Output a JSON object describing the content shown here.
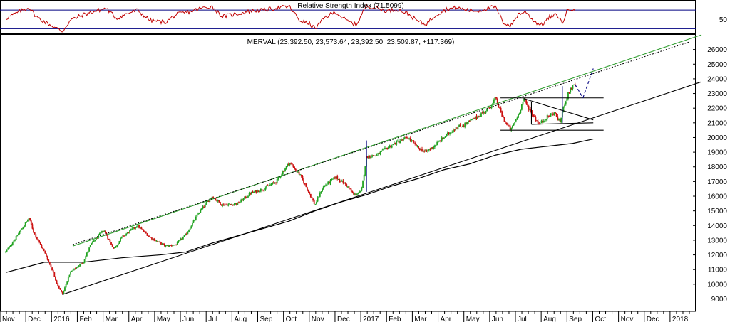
{
  "rsi_panel": {
    "title": "Relative Strength Index (71.5099)",
    "tick_labels": [
      "50"
    ],
    "upper_band": 70,
    "lower_band": 30,
    "ylim": [
      20,
      90
    ],
    "line_color": "#c00000",
    "band_color": "#000080"
  },
  "price_panel": {
    "title": "MERVAL (23,392.50, 23,573.64, 23,392.50, 23,509.87, +117.369)",
    "colors": {
      "up": "#22a322",
      "down": "#cc1111",
      "channel_upper": "#2e9e2e",
      "trendline": "#000000",
      "moving_average": "#000000",
      "pattern": "#000080"
    }
  },
  "chart_data": {
    "type": "candlestick",
    "x_tick_labels": [
      "Nov",
      "Dec",
      "2016",
      "Feb",
      "Mar",
      "Apr",
      "May",
      "Jun",
      "Jul",
      "Aug",
      "Sep",
      "Oct",
      "Nov",
      "Dec",
      "2017",
      "Feb",
      "Mar",
      "Apr",
      "May",
      "Jun",
      "Jul",
      "Aug",
      "Sep",
      "Oct",
      "Nov",
      "Dec",
      "2018"
    ],
    "y_tick_labels": [
      "9000",
      "10000",
      "11000",
      "12000",
      "13000",
      "14000",
      "15000",
      "16000",
      "17000",
      "18000",
      "19000",
      "20000",
      "21000",
      "22000",
      "23000",
      "24000",
      "25000",
      "26000"
    ],
    "ylim": [
      8200,
      27000
    ],
    "x_range_months": [
      0,
      26.3
    ],
    "price_path": [
      [
        0.0,
        12200
      ],
      [
        0.4,
        13200
      ],
      [
        0.9,
        14500
      ],
      [
        1.1,
        13500
      ],
      [
        1.5,
        12200
      ],
      [
        1.8,
        11000
      ],
      [
        2.0,
        10000
      ],
      [
        2.2,
        9300
      ],
      [
        2.5,
        10800
      ],
      [
        3.0,
        11500
      ],
      [
        3.3,
        12700
      ],
      [
        3.8,
        13700
      ],
      [
        4.2,
        12400
      ],
      [
        4.5,
        13200
      ],
      [
        5.1,
        14000
      ],
      [
        5.6,
        13200
      ],
      [
        6.2,
        12600
      ],
      [
        6.6,
        12700
      ],
      [
        7.0,
        13400
      ],
      [
        7.5,
        14900
      ],
      [
        8.0,
        16000
      ],
      [
        8.4,
        15400
      ],
      [
        9.0,
        15500
      ],
      [
        9.5,
        16200
      ],
      [
        10.0,
        16500
      ],
      [
        10.5,
        17000
      ],
      [
        11.0,
        18300
      ],
      [
        11.4,
        17500
      ],
      [
        11.7,
        16500
      ],
      [
        12.0,
        15400
      ],
      [
        12.3,
        16600
      ],
      [
        12.8,
        17300
      ],
      [
        13.2,
        16800
      ],
      [
        13.5,
        16100
      ],
      [
        13.8,
        16300
      ],
      [
        14.0,
        18700
      ],
      [
        14.4,
        18800
      ],
      [
        14.8,
        19300
      ],
      [
        15.2,
        19700
      ],
      [
        15.6,
        20000
      ],
      [
        16.0,
        19300
      ],
      [
        16.3,
        19000
      ],
      [
        16.6,
        19400
      ],
      [
        17.0,
        20000
      ],
      [
        17.4,
        20600
      ],
      [
        17.8,
        20900
      ],
      [
        18.2,
        21300
      ],
      [
        18.6,
        21800
      ],
      [
        18.9,
        22300
      ],
      [
        19.0,
        22700
      ],
      [
        19.3,
        21300
      ],
      [
        19.6,
        20500
      ],
      [
        19.9,
        21600
      ],
      [
        20.1,
        22600
      ],
      [
        20.4,
        21700
      ],
      [
        20.7,
        20900
      ],
      [
        21.0,
        21400
      ],
      [
        21.3,
        21700
      ],
      [
        21.5,
        21000
      ],
      [
        21.7,
        22400
      ],
      [
        21.9,
        23300
      ],
      [
        22.1,
        23600
      ]
    ],
    "moving_average": [
      [
        0.0,
        10800
      ],
      [
        1.5,
        11500
      ],
      [
        3.0,
        11500
      ],
      [
        4.5,
        11800
      ],
      [
        6.0,
        12000
      ],
      [
        7.0,
        12200
      ],
      [
        8.0,
        12800
      ],
      [
        9.0,
        13300
      ],
      [
        10.0,
        13800
      ],
      [
        11.0,
        14300
      ],
      [
        12.0,
        15000
      ],
      [
        13.0,
        15600
      ],
      [
        14.0,
        16100
      ],
      [
        15.0,
        16700
      ],
      [
        16.0,
        17200
      ],
      [
        17.0,
        17800
      ],
      [
        18.0,
        18200
      ],
      [
        19.0,
        18800
      ],
      [
        20.0,
        19200
      ],
      [
        21.0,
        19400
      ],
      [
        22.0,
        19600
      ],
      [
        22.8,
        19900
      ]
    ],
    "trendlines": [
      {
        "name": "channel_upper_solid",
        "style": "solid",
        "color_key": "channel_upper",
        "points": [
          [
            2.6,
            12600
          ],
          [
            27.0,
            27000
          ]
        ]
      },
      {
        "name": "channel_upper_dotted",
        "style": "dotted",
        "color_key": "trendline",
        "points": [
          [
            2.6,
            12700
          ],
          [
            26.5,
            26500
          ]
        ]
      },
      {
        "name": "support_trend",
        "style": "solid",
        "color_key": "trendline",
        "points": [
          [
            2.2,
            9300
          ],
          [
            27.0,
            23800
          ]
        ]
      },
      {
        "name": "range_top",
        "style": "solid",
        "color_key": "trendline",
        "points": [
          [
            19.2,
            22700
          ],
          [
            23.2,
            22700
          ]
        ]
      },
      {
        "name": "range_bottom",
        "style": "solid",
        "color_key": "trendline",
        "points": [
          [
            19.2,
            20500
          ],
          [
            23.2,
            20500
          ]
        ]
      },
      {
        "name": "triangle_upper",
        "style": "solid",
        "color_key": "trendline",
        "points": [
          [
            20.1,
            22650
          ],
          [
            22.8,
            21200
          ]
        ]
      },
      {
        "name": "triangle_lower",
        "style": "solid",
        "color_key": "trendline",
        "points": [
          [
            20.4,
            20900
          ],
          [
            22.8,
            21000
          ]
        ]
      },
      {
        "name": "triangle_left_leg",
        "style": "solid",
        "color_key": "trendline",
        "points": [
          [
            20.4,
            20900
          ],
          [
            20.4,
            22400
          ]
        ]
      },
      {
        "name": "breakout_rise_2017",
        "style": "solid",
        "color_key": "pattern",
        "points": [
          [
            14.0,
            16300
          ],
          [
            14.0,
            19800
          ]
        ]
      },
      {
        "name": "breakout_rise_aug",
        "style": "solid",
        "color_key": "pattern",
        "points": [
          [
            21.6,
            21000
          ],
          [
            21.6,
            23500
          ]
        ]
      },
      {
        "name": "projection_retest",
        "style": "dashed",
        "color_key": "pattern",
        "points": [
          [
            22.1,
            23600
          ],
          [
            22.4,
            22700
          ]
        ]
      },
      {
        "name": "projection_target",
        "style": "dashed",
        "color_key": "pattern",
        "points": [
          [
            22.4,
            22700
          ],
          [
            22.8,
            24700
          ]
        ]
      }
    ],
    "rsi_path": [
      [
        0.0,
        52
      ],
      [
        0.4,
        63
      ],
      [
        0.9,
        76
      ],
      [
        1.2,
        55
      ],
      [
        1.6,
        42
      ],
      [
        2.0,
        30
      ],
      [
        2.2,
        24
      ],
      [
        2.5,
        48
      ],
      [
        3.0,
        60
      ],
      [
        3.5,
        68
      ],
      [
        3.9,
        74
      ],
      [
        4.3,
        52
      ],
      [
        4.7,
        62
      ],
      [
        5.1,
        70
      ],
      [
        5.6,
        48
      ],
      [
        6.2,
        44
      ],
      [
        6.6,
        60
      ],
      [
        7.1,
        66
      ],
      [
        7.6,
        74
      ],
      [
        8.0,
        78
      ],
      [
        8.4,
        56
      ],
      [
        9.0,
        62
      ],
      [
        9.5,
        68
      ],
      [
        10.0,
        70
      ],
      [
        10.5,
        74
      ],
      [
        11.0,
        78
      ],
      [
        11.4,
        48
      ],
      [
        11.8,
        40
      ],
      [
        12.0,
        30
      ],
      [
        12.4,
        55
      ],
      [
        12.8,
        66
      ],
      [
        13.2,
        48
      ],
      [
        13.6,
        38
      ],
      [
        14.0,
        80
      ],
      [
        14.4,
        74
      ],
      [
        14.8,
        68
      ],
      [
        15.2,
        72
      ],
      [
        15.6,
        62
      ],
      [
        16.0,
        46
      ],
      [
        16.3,
        40
      ],
      [
        16.7,
        60
      ],
      [
        17.1,
        72
      ],
      [
        17.5,
        75
      ],
      [
        17.9,
        70
      ],
      [
        18.3,
        68
      ],
      [
        18.7,
        74
      ],
      [
        19.0,
        77
      ],
      [
        19.3,
        44
      ],
      [
        19.6,
        36
      ],
      [
        19.9,
        62
      ],
      [
        20.2,
        66
      ],
      [
        20.5,
        46
      ],
      [
        20.8,
        38
      ],
      [
        21.1,
        55
      ],
      [
        21.4,
        60
      ],
      [
        21.6,
        42
      ],
      [
        21.8,
        70
      ],
      [
        22.0,
        74
      ],
      [
        22.1,
        71.5
      ]
    ]
  }
}
